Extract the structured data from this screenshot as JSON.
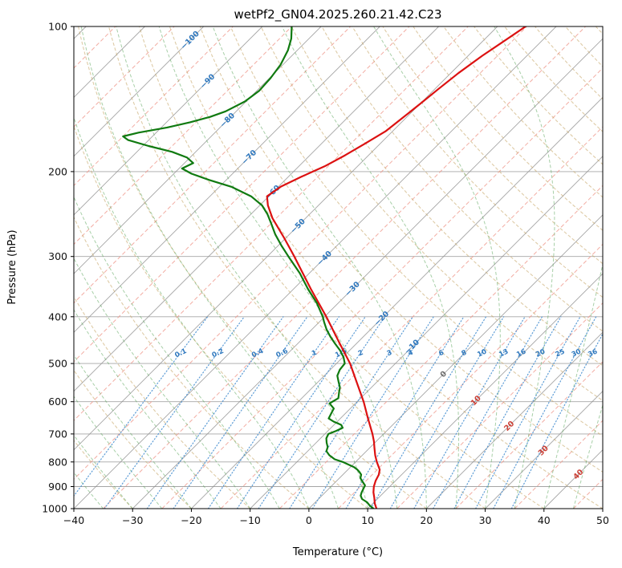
{
  "title": "wetPf2_GN04.2025.260.21.42.C23",
  "chart_data": {
    "type": "line",
    "subtype": "skew-t-log-p",
    "title": "wetPf2_GN04.2025.260.21.42.C23",
    "xlabel": "Temperature (°C)",
    "ylabel": "Pressure (hPa)",
    "xlim": [
      -40,
      50
    ],
    "pressure_lim": [
      1000,
      100
    ],
    "grid": true,
    "pressure_ticks": [
      100,
      200,
      300,
      400,
      500,
      600,
      700,
      800,
      900,
      1000
    ],
    "temperature_ticks": [
      -40,
      -30,
      -20,
      -10,
      0,
      10,
      20,
      30,
      40,
      50
    ],
    "isotherm_labels": [
      -100,
      -90,
      -80,
      -70,
      -60,
      -50,
      -40,
      -30,
      -20,
      -10,
      0,
      10,
      20,
      30,
      40
    ],
    "mixing_ratio_labels": [
      0.1,
      0.2,
      0.4,
      0.6,
      1,
      1.5,
      2,
      3,
      4,
      6,
      8,
      10,
      13,
      16,
      20,
      25,
      30,
      36
    ],
    "background": {
      "isotherm_solid": {
        "start": -120,
        "end": 50,
        "step": 10
      },
      "isotherm_dashed": {
        "start": -125,
        "end": 45,
        "step": 10
      },
      "dry_adiabats": {
        "theta_start": -40,
        "theta_end": 200,
        "step": 10
      },
      "moist_adiabats": {
        "t0_start": -40,
        "t0_end": 45,
        "step": 5
      },
      "mixing_lines_top_hpa": 400,
      "mixing_label_pressure_hpa": 475
    },
    "series": [
      {
        "name": "temperature",
        "color": "#dc1111",
        "points": [
          [
            1000,
            11.5
          ],
          [
            975,
            10.3
          ],
          [
            950,
            9.3
          ],
          [
            925,
            8.2
          ],
          [
            900,
            7.3
          ],
          [
            875,
            6.6
          ],
          [
            850,
            6.1
          ],
          [
            830,
            5.4
          ],
          [
            800,
            3.6
          ],
          [
            775,
            2.2
          ],
          [
            750,
            0.9
          ],
          [
            725,
            -0.4
          ],
          [
            700,
            -1.9
          ],
          [
            650,
            -5.3
          ],
          [
            600,
            -8.9
          ],
          [
            550,
            -13.1
          ],
          [
            500,
            -17.7
          ],
          [
            450,
            -23.4
          ],
          [
            400,
            -29.7
          ],
          [
            350,
            -37.1
          ],
          [
            300,
            -45.4
          ],
          [
            275,
            -50.2
          ],
          [
            250,
            -55.6
          ],
          [
            235,
            -58.6
          ],
          [
            225,
            -60.3
          ],
          [
            215,
            -59.6
          ],
          [
            205,
            -57.8
          ],
          [
            195,
            -55.6
          ],
          [
            185,
            -54.0
          ],
          [
            175,
            -52.6
          ],
          [
            165,
            -51.2
          ],
          [
            155,
            -50.6
          ],
          [
            145,
            -50.0
          ],
          [
            135,
            -49.4
          ],
          [
            125,
            -48.7
          ],
          [
            115,
            -47.6
          ],
          [
            108,
            -46.5
          ],
          [
            100,
            -45.2
          ]
        ]
      },
      {
        "name": "dewpoint",
        "color": "#107a10",
        "points": [
          [
            1000,
            11.0
          ],
          [
            985,
            9.8
          ],
          [
            970,
            8.8
          ],
          [
            955,
            7.4
          ],
          [
            940,
            6.6
          ],
          [
            925,
            6.2
          ],
          [
            910,
            5.9
          ],
          [
            895,
            5.6
          ],
          [
            880,
            4.6
          ],
          [
            865,
            3.6
          ],
          [
            850,
            3.1
          ],
          [
            840,
            2.4
          ],
          [
            830,
            1.6
          ],
          [
            820,
            0.6
          ],
          [
            810,
            -0.8
          ],
          [
            800,
            -2.2
          ],
          [
            790,
            -4.0
          ],
          [
            775,
            -5.6
          ],
          [
            760,
            -6.8
          ],
          [
            745,
            -7.3
          ],
          [
            730,
            -8.2
          ],
          [
            715,
            -9.0
          ],
          [
            700,
            -9.4
          ],
          [
            690,
            -8.6
          ],
          [
            680,
            -8.0
          ],
          [
            670,
            -8.8
          ],
          [
            660,
            -10.6
          ],
          [
            650,
            -12.0
          ],
          [
            635,
            -12.4
          ],
          [
            620,
            -12.8
          ],
          [
            605,
            -14.4
          ],
          [
            590,
            -13.8
          ],
          [
            575,
            -14.6
          ],
          [
            560,
            -15.4
          ],
          [
            545,
            -16.6
          ],
          [
            530,
            -17.8
          ],
          [
            515,
            -18.4
          ],
          [
            500,
            -18.6
          ],
          [
            485,
            -19.9
          ],
          [
            470,
            -21.6
          ],
          [
            455,
            -23.6
          ],
          [
            440,
            -25.6
          ],
          [
            425,
            -27.5
          ],
          [
            410,
            -29.2
          ],
          [
            400,
            -30.3
          ],
          [
            375,
            -33.6
          ],
          [
            350,
            -37.6
          ],
          [
            325,
            -41.6
          ],
          [
            300,
            -46.4
          ],
          [
            285,
            -49.4
          ],
          [
            270,
            -52.4
          ],
          [
            255,
            -55.2
          ],
          [
            245,
            -57.2
          ],
          [
            235,
            -59.6
          ],
          [
            225,
            -63.0
          ],
          [
            215,
            -68.0
          ],
          [
            208,
            -73.0
          ],
          [
            202,
            -77.0
          ],
          [
            197,
            -79.5
          ],
          [
            192,
            -78.5
          ],
          [
            187,
            -80.5
          ],
          [
            182,
            -84.0
          ],
          [
            177,
            -89.0
          ],
          [
            172,
            -93.5
          ],
          [
            169,
            -95.0
          ],
          [
            166,
            -93.0
          ],
          [
            162,
            -89.0
          ],
          [
            158,
            -86.0
          ],
          [
            154,
            -83.5
          ],
          [
            150,
            -81.8
          ],
          [
            143,
            -80.2
          ],
          [
            136,
            -79.6
          ],
          [
            128,
            -79.8
          ],
          [
            120,
            -80.4
          ],
          [
            112,
            -81.6
          ],
          [
            106,
            -83.0
          ],
          [
            100,
            -85.0
          ]
        ]
      }
    ],
    "colors": {
      "isotherm_solid": "#8f8f8f",
      "isotherm_dashed": "#ef988c",
      "dry_adiabat": "#c8a86a",
      "moist_adiabat": "#5fa85f",
      "mixing_line": "#4d92d2",
      "label_cold": "#2f78be",
      "label_zero": "#6e6e6e",
      "label_warm": "#cc4036",
      "frame": "#000000"
    }
  }
}
